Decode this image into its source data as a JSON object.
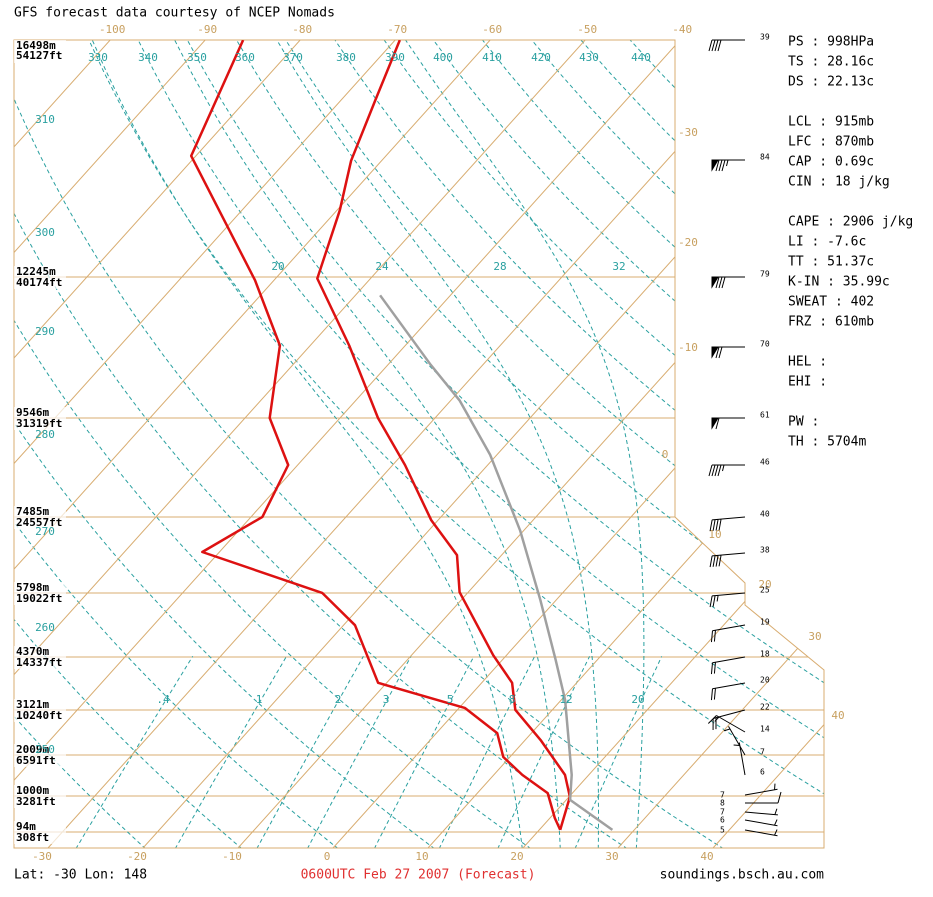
{
  "chart_data": {
    "type": "skewt",
    "title": "GFS forecast data courtesy of NCEP Nomads",
    "heights": [
      {
        "m": "16498m",
        "ft": "54127ft"
      },
      {
        "m": "12245m",
        "ft": "40174ft"
      },
      {
        "m": "9546m",
        "ft": "31319ft"
      },
      {
        "m": "7485m",
        "ft": "24557ft"
      },
      {
        "m": "5798m",
        "ft": "19022ft"
      },
      {
        "m": "4370m",
        "ft": "14337ft"
      },
      {
        "m": "3121m",
        "ft": "10240ft"
      },
      {
        "m": "2009m",
        "ft": "6591ft"
      },
      {
        "m": "1000m",
        "ft": "3281ft"
      },
      {
        "m": "94m",
        "ft": "308ft"
      }
    ],
    "temperature_top": [
      -100,
      -90,
      -80,
      -70,
      -60,
      -50,
      -40
    ],
    "temperature_right": [
      -30,
      -20,
      -10,
      0,
      10,
      20,
      30,
      40
    ],
    "temperature_bottom": [
      -30,
      -20,
      -10,
      0,
      10,
      20,
      30,
      40
    ],
    "theta_labels": [
      330,
      340,
      350,
      360,
      370,
      380,
      390,
      400,
      410,
      420,
      430,
      440,
      310,
      300,
      290,
      280,
      270,
      260,
      250
    ],
    "theta_e_labels": [
      20,
      24,
      28,
      32
    ],
    "mixing_ratio_labels": [
      {
        "value": 0.4,
        "label": ".4"
      },
      1,
      2,
      3,
      5,
      8,
      12,
      20
    ],
    "stats": [
      [
        "PS : 998HPa",
        "TS : 28.16c",
        "DS : 22.13c"
      ],
      [
        "LCL : 915mb",
        "LFC : 870mb",
        "CAP : 0.69c",
        "CIN : 18 j/kg"
      ],
      [
        "CAPE : 2906 j/kg",
        "LI : -7.6c",
        "TT : 51.37c",
        "K-IN : 35.99c",
        "SWEAT : 402",
        "FRZ : 610mb"
      ],
      [
        "HEL :",
        "EHI :"
      ],
      [
        "PW :",
        "TH : 5704m"
      ]
    ],
    "wind_speeds": [
      39,
      84,
      79,
      70,
      61,
      46,
      40,
      38,
      25,
      19,
      18,
      20,
      22,
      14,
      7,
      6,
      7,
      8,
      7,
      6,
      5
    ],
    "wind_directions": [
      270,
      270,
      270,
      270,
      270,
      270,
      265,
      265,
      265,
      260,
      260,
      260,
      255,
      300,
      330,
      350,
      80,
      90,
      95,
      100,
      100
    ],
    "temperature": {
      "name": "temperature",
      "color": "#dd1111",
      "p": [
        994,
        903,
        847,
        765,
        701,
        648,
        598,
        498,
        447,
        404,
        344,
        300,
        243,
        200,
        164,
        142,
        119,
        100
      ],
      "t": [
        22.2,
        20.1,
        17.5,
        11.6,
        6.1,
        3.2,
        -1.4,
        -10.9,
        -14.7,
        -20.7,
        -28.7,
        -36.0,
        -45.9,
        -55.6,
        -59.7,
        -63.2,
        -66.4,
        -69.5
      ]
    },
    "dewpoint": {
      "name": "dewpoint",
      "color": "#dd1111",
      "p": [
        994,
        960,
        893,
        847,
        804,
        750,
        697,
        648,
        548,
        499,
        443,
        400,
        344,
        300,
        243,
        201,
        140,
        100
      ],
      "t": [
        22.2,
        20.5,
        17.4,
        13.0,
        9.3,
        6.4,
        0.6,
        -10.9,
        -18.8,
        -25.3,
        -41.8,
        -38.8,
        -41.0,
        -47.4,
        -53.2,
        -62.0,
        -80.5,
        -86.0
      ]
    },
    "parcel": {
      "name": "parcel",
      "color": "#a0a0a0",
      "p": [
        994,
        911,
        847,
        681,
        606,
        509,
        416,
        334,
        285,
        257,
        210
      ],
      "t": [
        27.7,
        20.4,
        18.2,
        10.4,
        5.6,
        -1.7,
        -10.4,
        -20.7,
        -29.1,
        -35.5,
        -47.4
      ]
    },
    "location": "Lat: -30  Lon: 148",
    "time": "0600UTC Feb 27 2007 (Forecast)",
    "source": "soundings.bsch.au.com"
  }
}
